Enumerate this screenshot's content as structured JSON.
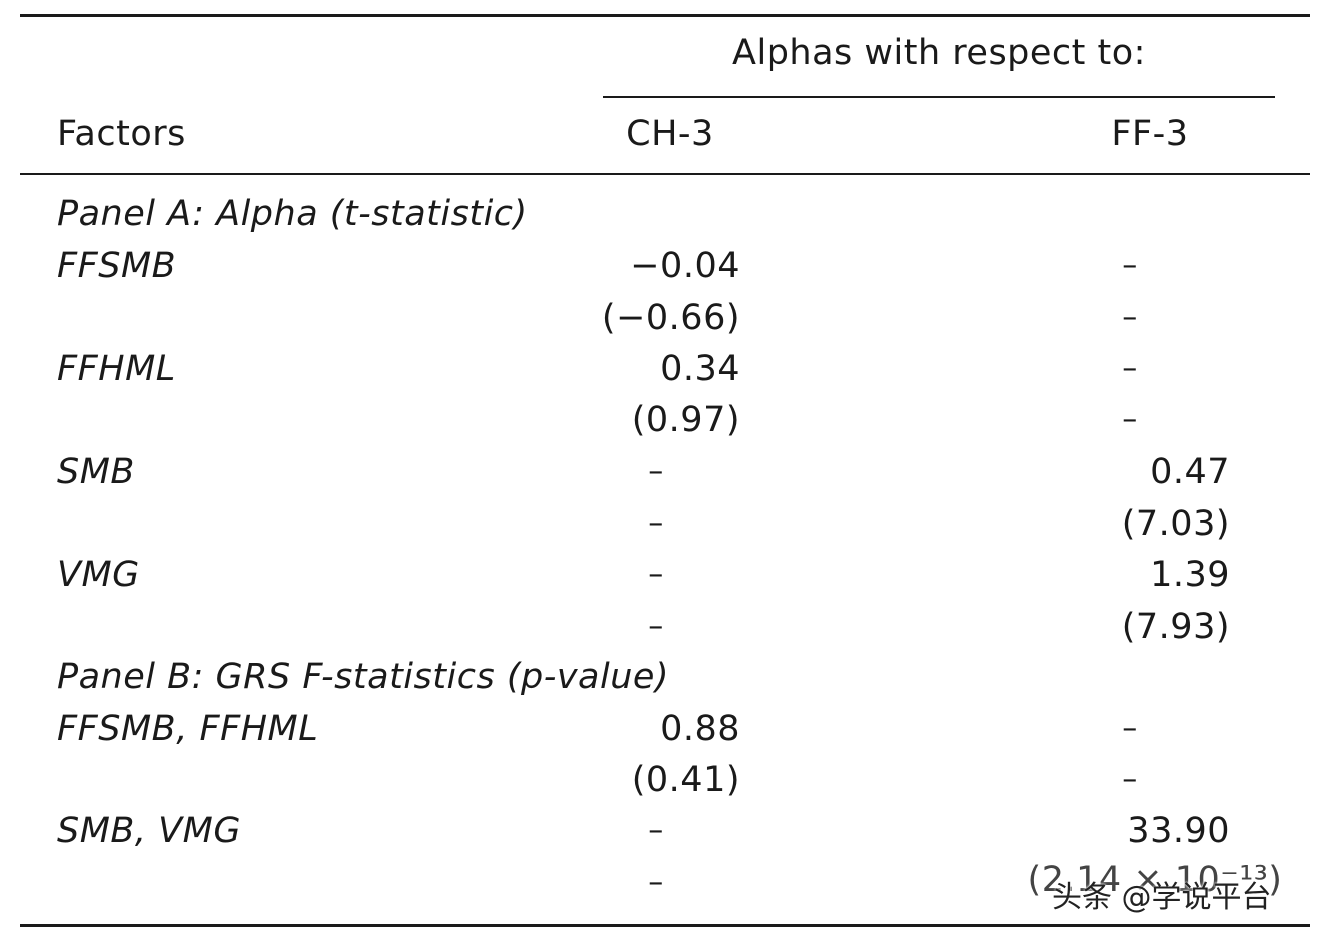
{
  "header": {
    "span_title": "Alphas with respect to:",
    "col_factors": "Factors",
    "col_ch3": "CH-3",
    "col_ff3": "FF-3"
  },
  "panel_a": {
    "title": "Panel A: Alpha (t-statistic)",
    "rows": [
      {
        "label": "FFSMB",
        "ch3": "−0.04",
        "ff3": "–"
      },
      {
        "label": "",
        "ch3": "(−0.66)",
        "ff3": "–"
      },
      {
        "label": "FFHML",
        "ch3": "0.34",
        "ff3": "–"
      },
      {
        "label": "",
        "ch3": "(0.97)",
        "ff3": "–"
      },
      {
        "label": "SMB",
        "ch3": "–",
        "ff3": "0.47"
      },
      {
        "label": "",
        "ch3": "–",
        "ff3": "(7.03)"
      },
      {
        "label": "VMG",
        "ch3": "–",
        "ff3": "1.39"
      },
      {
        "label": "",
        "ch3": "–",
        "ff3": "(7.93)"
      }
    ]
  },
  "panel_b": {
    "title": "Panel B: GRS F-statistics (p-value)",
    "rows": [
      {
        "label": "FFSMB, FFHML",
        "ch3": "0.88",
        "ff3": "–"
      },
      {
        "label": "",
        "ch3": "(0.41)",
        "ff3": "–"
      },
      {
        "label": "SMB, VMG",
        "ch3": "–",
        "ff3": "33.90"
      },
      {
        "label": "",
        "ch3": "–",
        "ff3": "(2.14 × 10⁻¹³)"
      }
    ]
  },
  "watermark": "头条 @学说平台"
}
